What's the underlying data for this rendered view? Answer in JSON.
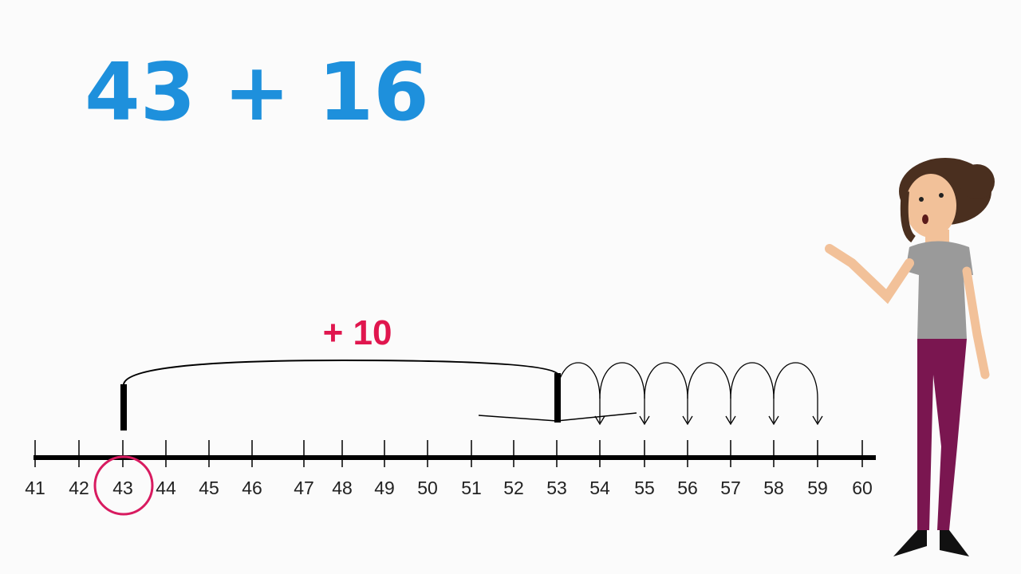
{
  "title": "43 + 16",
  "jump_label": "+ 10",
  "number_line": {
    "ticks": [
      41,
      42,
      43,
      44,
      45,
      46,
      47,
      48,
      49,
      50,
      51,
      52,
      53,
      54,
      55,
      56,
      57,
      58,
      59,
      60
    ]
  }
}
